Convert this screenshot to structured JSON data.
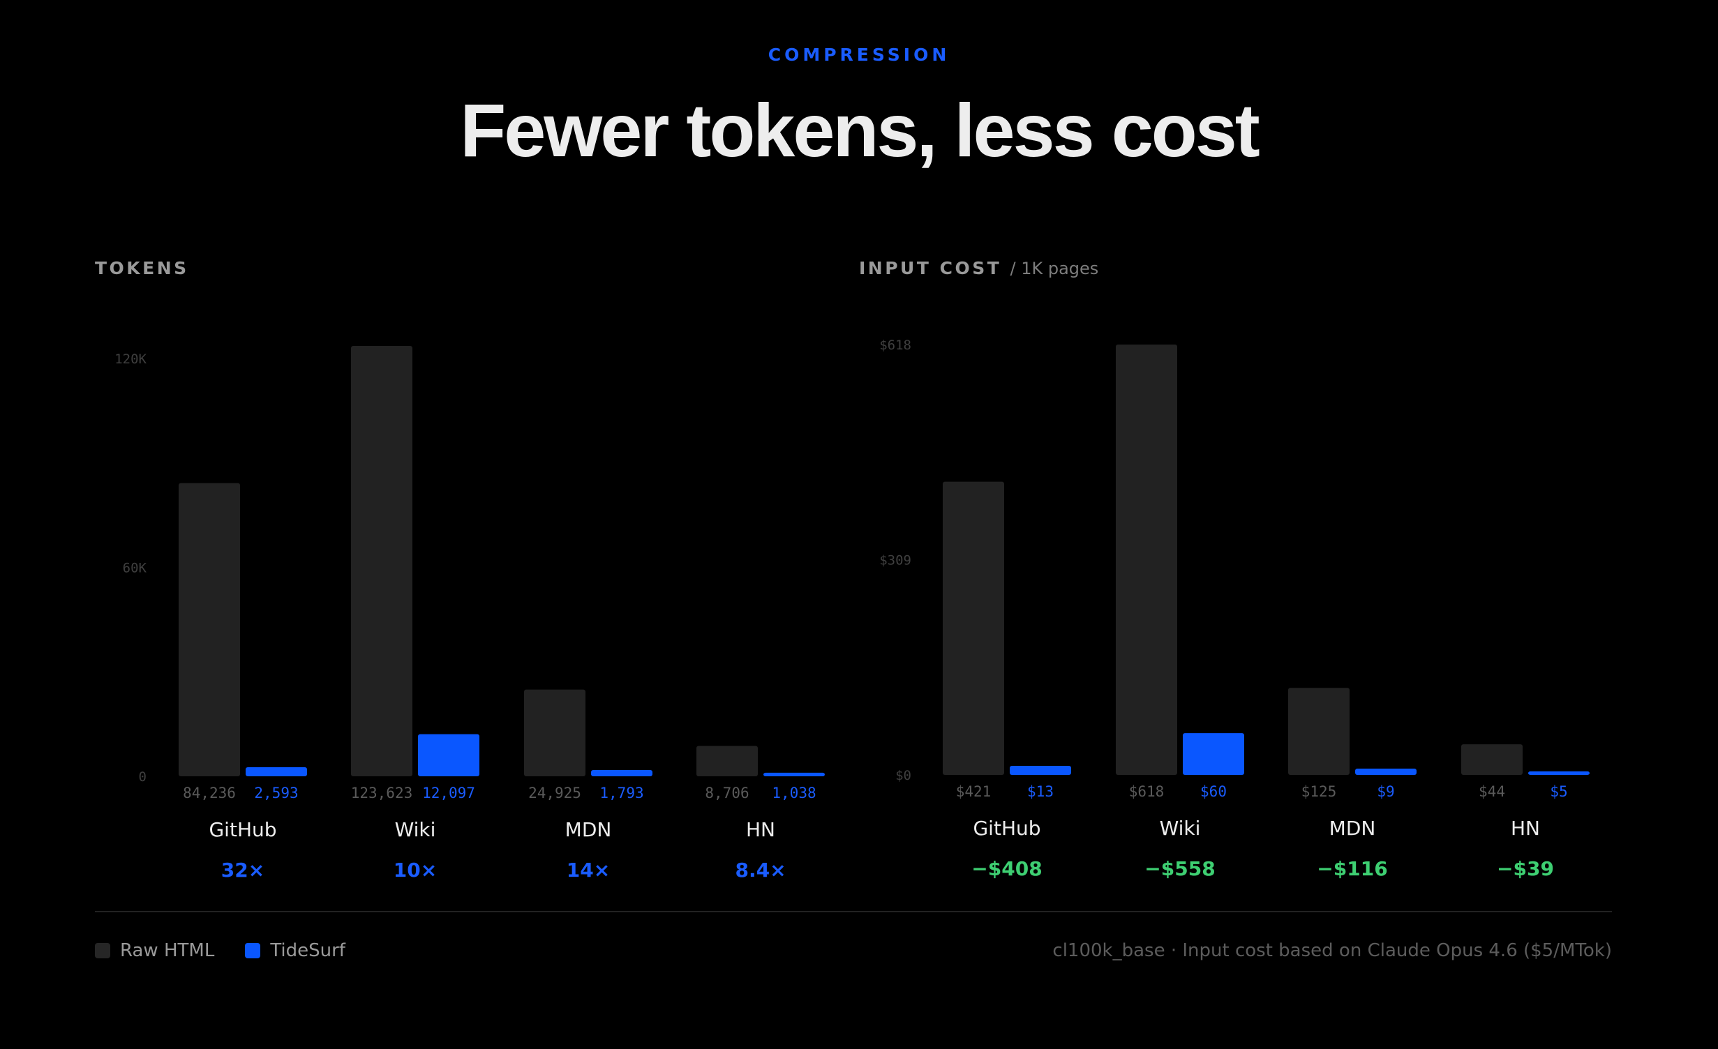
{
  "header": {
    "eyebrow": "COMPRESSION",
    "title": "Fewer tokens, less cost"
  },
  "colors": {
    "raw": "#222222",
    "tidesurf": "#0a57ff",
    "accent_blue": "#1a5cff",
    "savings_green": "#3ecf72"
  },
  "legend": {
    "raw_label": "Raw HTML",
    "tidesurf_label": "TideSurf"
  },
  "footnote": "cl100k_base · Input cost based on Claude Opus 4.6 ($5/MTok)",
  "chart_data": [
    {
      "type": "bar",
      "title": "TOKENS",
      "subtitle": "",
      "categories": [
        "GitHub",
        "Wiki",
        "MDN",
        "HN"
      ],
      "series": [
        {
          "name": "Raw HTML",
          "values": [
            84236,
            123623,
            24925,
            8706
          ]
        },
        {
          "name": "TideSurf",
          "values": [
            2593,
            12097,
            1793,
            1038
          ]
        }
      ],
      "value_labels": {
        "raw": [
          "84,236",
          "123,623",
          "24,925",
          "8,706"
        ],
        "tidesurf": [
          "2,593",
          "12,097",
          "1,793",
          "1,038"
        ]
      },
      "y_ticks": [
        "120K",
        "60K",
        "0"
      ],
      "y_tick_values": [
        120000,
        60000,
        0
      ],
      "ylim": [
        0,
        123623
      ],
      "annotations": [
        "32×",
        "10×",
        "14×",
        "8.4×"
      ],
      "annotation_color": "#1a5cff"
    },
    {
      "type": "bar",
      "title": "INPUT COST",
      "subtitle": "/ 1K pages",
      "categories": [
        "GitHub",
        "Wiki",
        "MDN",
        "HN"
      ],
      "series": [
        {
          "name": "Raw HTML",
          "values": [
            421,
            618,
            125,
            44
          ]
        },
        {
          "name": "TideSurf",
          "values": [
            13,
            60,
            9,
            5
          ]
        }
      ],
      "value_labels": {
        "raw": [
          "$421",
          "$618",
          "$125",
          "$44"
        ],
        "tidesurf": [
          "$13",
          "$60",
          "$9",
          "$5"
        ]
      },
      "y_ticks": [
        "$618",
        "$309",
        "$0"
      ],
      "y_tick_values": [
        618,
        309,
        0
      ],
      "ylim": [
        0,
        618
      ],
      "annotations": [
        "−$408",
        "−$558",
        "−$116",
        "−$39"
      ],
      "annotation_color": "#3ecf72"
    }
  ]
}
